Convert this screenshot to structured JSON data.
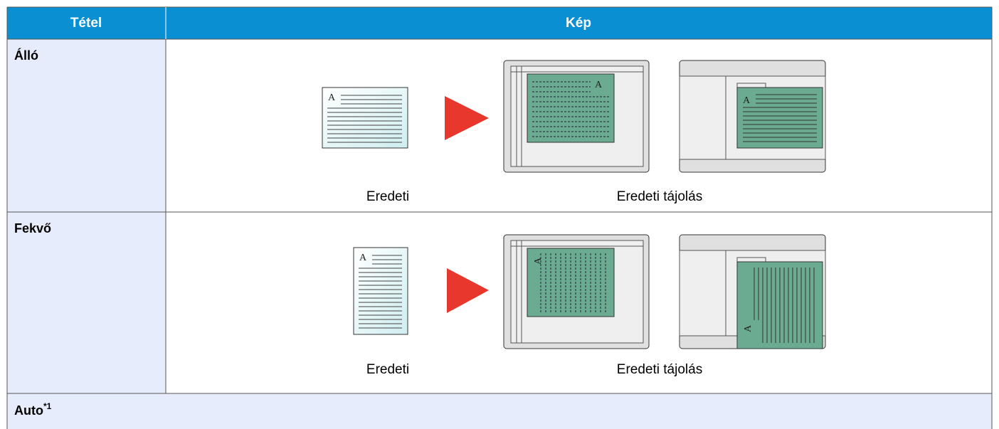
{
  "table": {
    "header": [
      "Tétel",
      "Kép"
    ],
    "rows": [
      {
        "label": "Álló",
        "captions": [
          "Eredeti",
          "Eredeti tájolás"
        ]
      },
      {
        "label": "Fekvő",
        "captions": [
          "Eredeti",
          "Eredeti tájolás"
        ]
      },
      {
        "label": "Auto",
        "footnote": "*1"
      }
    ]
  },
  "illustration_letter": "A"
}
